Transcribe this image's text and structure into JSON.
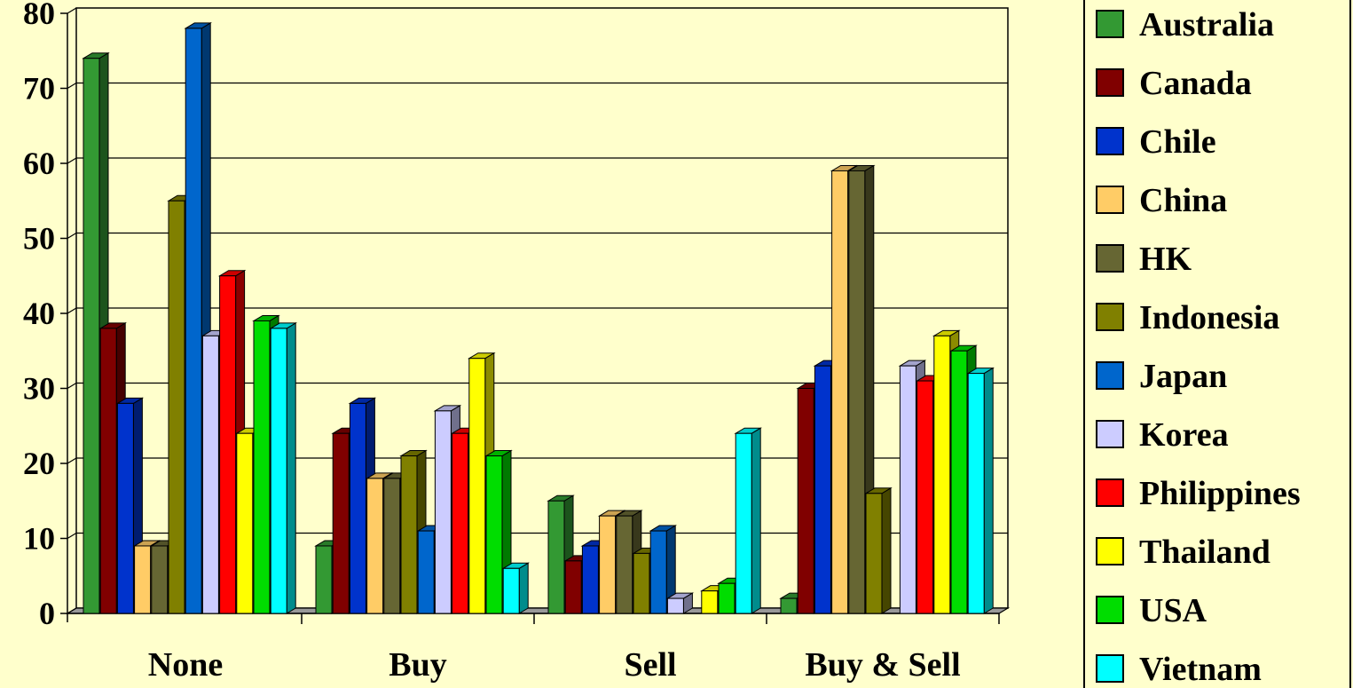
{
  "chart_data": {
    "type": "bar",
    "title": "",
    "xlabel": "",
    "ylabel": "",
    "categories": [
      "None",
      "Buy",
      "Sell",
      "Buy & Sell"
    ],
    "ylim": [
      0,
      80
    ],
    "yticks": [
      0,
      10,
      20,
      30,
      40,
      50,
      60,
      70,
      80
    ],
    "grid": true,
    "legend_position": "right",
    "style": "3d-clustered-column",
    "series": [
      {
        "name": "Australia",
        "color": "#339933",
        "values": [
          74,
          9,
          15,
          2
        ]
      },
      {
        "name": "Canada",
        "color": "#800000",
        "values": [
          38,
          24,
          7,
          30
        ]
      },
      {
        "name": "Chile",
        "color": "#0033CC",
        "values": [
          28,
          28,
          9,
          33
        ]
      },
      {
        "name": "China",
        "color": "#FFCC66",
        "values": [
          9,
          18,
          13,
          59
        ]
      },
      {
        "name": "HK",
        "color": "#666633",
        "values": [
          9,
          18,
          13,
          59
        ]
      },
      {
        "name": "Indonesia",
        "color": "#808000",
        "values": [
          55,
          21,
          8,
          16
        ]
      },
      {
        "name": "Japan",
        "color": "#0066CC",
        "values": [
          78,
          11,
          11,
          0
        ]
      },
      {
        "name": "Korea",
        "color": "#CCCCFF",
        "values": [
          37,
          27,
          2,
          33
        ]
      },
      {
        "name": "Philippines",
        "color": "#FF0000",
        "values": [
          45,
          24,
          0,
          31
        ]
      },
      {
        "name": "Thailand",
        "color": "#FFFF00",
        "values": [
          24,
          34,
          3,
          37
        ]
      },
      {
        "name": "USA",
        "color": "#00DD00",
        "values": [
          39,
          21,
          4,
          35
        ]
      },
      {
        "name": "Vietnam",
        "color": "#00FFFF",
        "values": [
          38,
          6,
          24,
          32
        ]
      }
    ]
  }
}
